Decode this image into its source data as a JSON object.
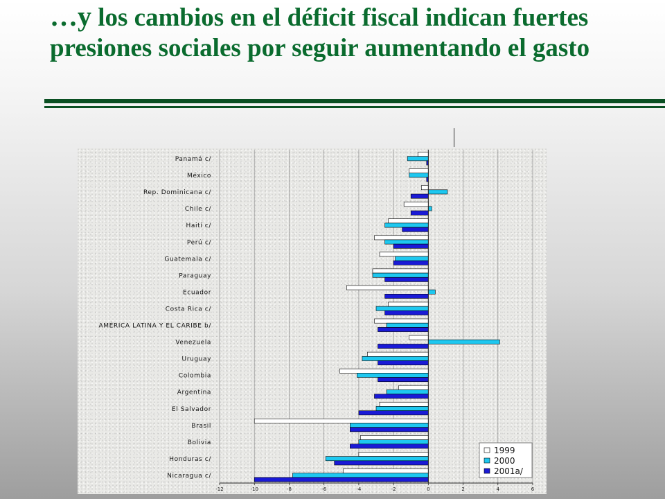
{
  "title": {
    "lead": "…y",
    "rest": " los cambios en el déficit fiscal indican fuertes presiones sociales por seguir aumentando el gasto"
  },
  "colors": {
    "title_green": "#0a6b2e",
    "rule_green": "#0a4f22",
    "series_1999": "#ffffff",
    "series_2000": "#1ec8f0",
    "series_2001": "#1a1ad6"
  },
  "chart_data": {
    "type": "bar",
    "orientation": "horizontal",
    "categories": [
      "Panamá c/",
      "México",
      "Rep. Dominicana c/",
      "Chile c/",
      "Haití c/",
      "Perú c/",
      "Guatemala c/",
      "Paraguay",
      "Ecuador",
      "Costa Rica c/",
      "AMÉRICA LATINA Y EL CARIBE b/",
      "Venezuela",
      "Uruguay",
      "Colombia",
      "Argentina",
      "El Salvador",
      "Brasil",
      "Bolivia",
      "Honduras c/",
      "Nicaragua c/"
    ],
    "series": [
      {
        "name": "1999",
        "values": [
          -0.6,
          -1.1,
          -0.4,
          -1.4,
          -2.3,
          -3.1,
          -2.8,
          -3.2,
          -4.7,
          -2.3,
          -3.1,
          -1.1,
          -3.5,
          -5.1,
          -1.7,
          -2.8,
          -10.0,
          -3.9,
          -4.0,
          -4.9
        ]
      },
      {
        "name": "2000",
        "values": [
          -1.2,
          -1.1,
          1.1,
          0.2,
          -2.5,
          -2.5,
          -1.9,
          -3.2,
          0.4,
          -3.0,
          -2.4,
          4.1,
          -3.8,
          -4.1,
          -2.4,
          -3.0,
          -4.5,
          -4.0,
          -5.9,
          -7.8
        ]
      },
      {
        "name": "2001a/",
        "values": [
          -0.1,
          -0.1,
          -1.0,
          -1.0,
          -1.5,
          -2.0,
          -2.0,
          -2.5,
          -2.5,
          -2.5,
          -2.9,
          -2.9,
          -2.9,
          -2.9,
          -3.1,
          -4.0,
          -4.5,
          -4.5,
          -5.4,
          -10.0
        ]
      }
    ],
    "x_ticks": [
      "-12",
      "-10",
      "-8",
      "-6",
      "-4",
      "-2",
      "0",
      "2",
      "4",
      "6"
    ],
    "xlim": [
      -12,
      6
    ],
    "legend_position": "bottom-right",
    "grid": true
  }
}
